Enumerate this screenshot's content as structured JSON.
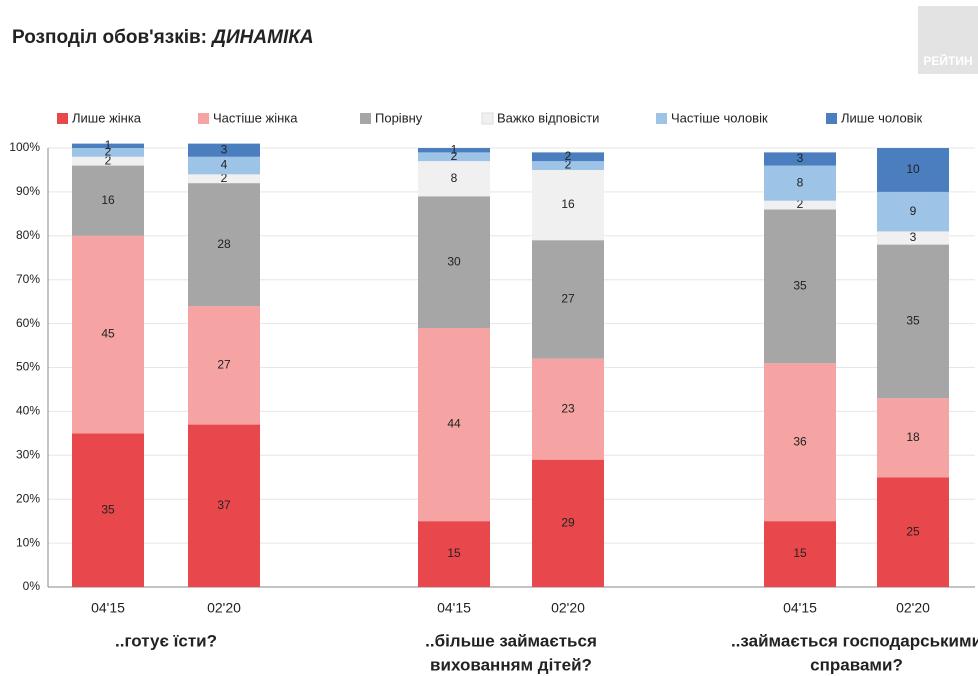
{
  "chart_data": {
    "type": "stacked_bar",
    "title": "Розподіл обов'язків:",
    "title_emphasis": "ДИНАМІКА",
    "logo": "РЕЙТИН",
    "categories": [
      "04'15",
      "02'20",
      "04'15",
      "02'20",
      "04'15",
      "02'20"
    ],
    "groups": [
      {
        "lines": [
          "..готує їсти?"
        ],
        "categories": [
          0,
          1
        ]
      },
      {
        "lines": [
          "..більше займається",
          "вихованням дітей?"
        ],
        "categories": [
          2,
          3
        ]
      },
      {
        "lines": [
          "..займається господарськими",
          "справами?"
        ],
        "categories": [
          4,
          5
        ]
      }
    ],
    "series": [
      {
        "name": "Лише жінка",
        "color": "#e8474b",
        "values": [
          35,
          37,
          15,
          29,
          15,
          25
        ]
      },
      {
        "name": "Частіше  жінка",
        "color": "#f5a3a3",
        "values": [
          45,
          27,
          44,
          23,
          36,
          18
        ]
      },
      {
        "name": "Порівну",
        "color": "#a6a6a6",
        "values": [
          16,
          28,
          30,
          27,
          35,
          35
        ]
      },
      {
        "name": "Важко відповісти",
        "color": "#f0f0f0",
        "values": [
          2,
          2,
          8,
          16,
          2,
          3
        ]
      },
      {
        "name": "Частіше  чоловік",
        "color": "#9dc3e6",
        "values": [
          2,
          4,
          2,
          2,
          8,
          9
        ]
      },
      {
        "name": "Лише чоловік",
        "color": "#4a7ebf",
        "values": [
          1,
          3,
          1,
          2,
          3,
          10
        ]
      }
    ],
    "ylim": [
      0,
      100
    ],
    "yticks": [
      {
        "value": 0,
        "label": "0%"
      },
      {
        "value": 10,
        "label": "10%"
      },
      {
        "value": 20,
        "label": "20%"
      },
      {
        "value": 30,
        "label": "30%"
      },
      {
        "value": 40,
        "label": "40%"
      },
      {
        "value": 50,
        "label": "50%"
      },
      {
        "value": 60,
        "label": "60%"
      },
      {
        "value": 70,
        "label": "70%"
      },
      {
        "value": 80,
        "label": "80%"
      },
      {
        "value": 90,
        "label": "90%"
      },
      {
        "value": 100,
        "label": "100%"
      }
    ],
    "grid": true,
    "legend": "top"
  }
}
